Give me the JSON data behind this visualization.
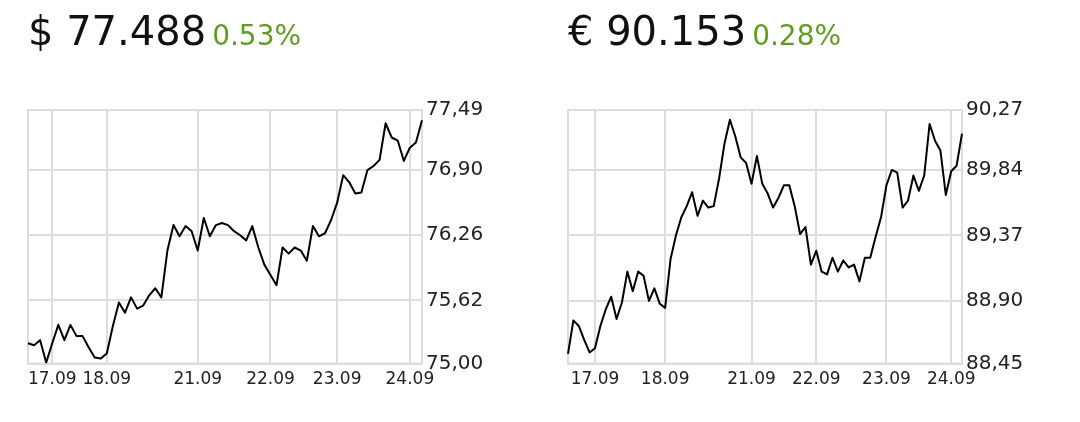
{
  "chart_data": [
    {
      "type": "line",
      "title": "$ 77.488",
      "subtitle": "0.53%",
      "marker": "none",
      "grid": true,
      "categories": [
        null,
        null,
        null,
        null,
        "17.09",
        null,
        null,
        null,
        null,
        null,
        null,
        null,
        null,
        "18.09",
        null,
        null,
        null,
        null,
        null,
        null,
        null,
        null,
        null,
        null,
        null,
        null,
        null,
        null,
        "21.09",
        null,
        null,
        null,
        null,
        null,
        null,
        null,
        null,
        null,
        null,
        null,
        "22.09",
        null,
        null,
        null,
        null,
        null,
        null,
        null,
        null,
        null,
        null,
        "23.09",
        null,
        null,
        null,
        null,
        null,
        null,
        null,
        null,
        null,
        null,
        null,
        "24.09",
        null,
        null
      ],
      "series": [
        {
          "color": "#000000",
          "values": [
            75.2,
            75.18,
            75.23,
            75.01,
            75.2,
            75.38,
            75.23,
            75.38,
            75.27,
            75.27,
            75.16,
            75.06,
            75.05,
            75.1,
            75.37,
            75.6,
            75.5,
            75.65,
            75.54,
            75.57,
            75.67,
            75.74,
            75.65,
            76.11,
            76.36,
            76.25,
            76.35,
            76.3,
            76.11,
            76.43,
            76.25,
            76.36,
            76.38,
            76.36,
            76.3,
            76.26,
            76.21,
            76.35,
            76.14,
            75.97,
            75.87,
            75.77,
            76.14,
            76.08,
            76.14,
            76.11,
            76.01,
            76.35,
            76.25,
            76.28,
            76.41,
            76.58,
            76.85,
            76.78,
            76.67,
            76.68,
            76.9,
            76.94,
            77.0,
            77.36,
            77.22,
            77.19,
            76.99,
            77.12,
            77.17,
            77.39
          ]
        }
      ],
      "ylim": [
        75,
        77.49
      ],
      "yticks": [
        {
          "value": 75,
          "label": "75,00"
        },
        {
          "value": 75.62,
          "label": "75,62"
        },
        {
          "value": 76.26,
          "label": "76,26"
        },
        {
          "value": 76.9,
          "label": "76,90"
        },
        {
          "value": 77.49,
          "label": "77,49"
        }
      ]
    },
    {
      "type": "line",
      "title": "€ 90.153",
      "subtitle": "0.28%",
      "marker": "none",
      "grid": true,
      "categories": [
        null,
        null,
        null,
        null,
        null,
        "17.09",
        null,
        null,
        null,
        null,
        null,
        null,
        null,
        null,
        null,
        null,
        null,
        null,
        "18.09",
        null,
        null,
        null,
        null,
        null,
        null,
        null,
        null,
        null,
        null,
        null,
        null,
        null,
        null,
        null,
        "21.09",
        null,
        null,
        null,
        null,
        null,
        null,
        null,
        null,
        null,
        null,
        null,
        "22.09",
        null,
        null,
        null,
        null,
        null,
        null,
        null,
        null,
        null,
        null,
        null,
        null,
        "23.09",
        null,
        null,
        null,
        null,
        null,
        null,
        null,
        null,
        null,
        null,
        null,
        "24.09",
        null,
        null
      ],
      "series": [
        {
          "color": "#000000",
          "values": [
            88.52,
            88.76,
            88.72,
            88.62,
            88.53,
            88.56,
            88.72,
            88.84,
            88.93,
            88.77,
            88.89,
            89.11,
            88.97,
            89.11,
            89.08,
            88.9,
            88.99,
            88.88,
            88.85,
            89.2,
            89.37,
            89.5,
            89.58,
            89.68,
            89.51,
            89.62,
            89.57,
            89.58,
            89.78,
            90.03,
            90.2,
            90.08,
            89.93,
            89.89,
            89.74,
            89.94,
            89.74,
            89.67,
            89.57,
            89.64,
            89.73,
            89.73,
            89.58,
            89.38,
            89.43,
            89.16,
            89.26,
            89.11,
            89.09,
            89.21,
            89.11,
            89.19,
            89.14,
            89.16,
            89.04,
            89.21,
            89.21,
            89.36,
            89.5,
            89.73,
            89.84,
            89.82,
            89.57,
            89.62,
            89.8,
            89.69,
            89.8,
            90.17,
            90.05,
            89.98,
            89.66,
            89.83,
            89.87,
            90.1
          ]
        }
      ],
      "ylim": [
        88.45,
        90.27
      ],
      "yticks": [
        {
          "value": 88.45,
          "label": "88,45"
        },
        {
          "value": 88.9,
          "label": "88,90"
        },
        {
          "value": 89.37,
          "label": "89,37"
        },
        {
          "value": 89.84,
          "label": "89,84"
        },
        {
          "value": 90.27,
          "label": "90,27"
        }
      ]
    }
  ]
}
